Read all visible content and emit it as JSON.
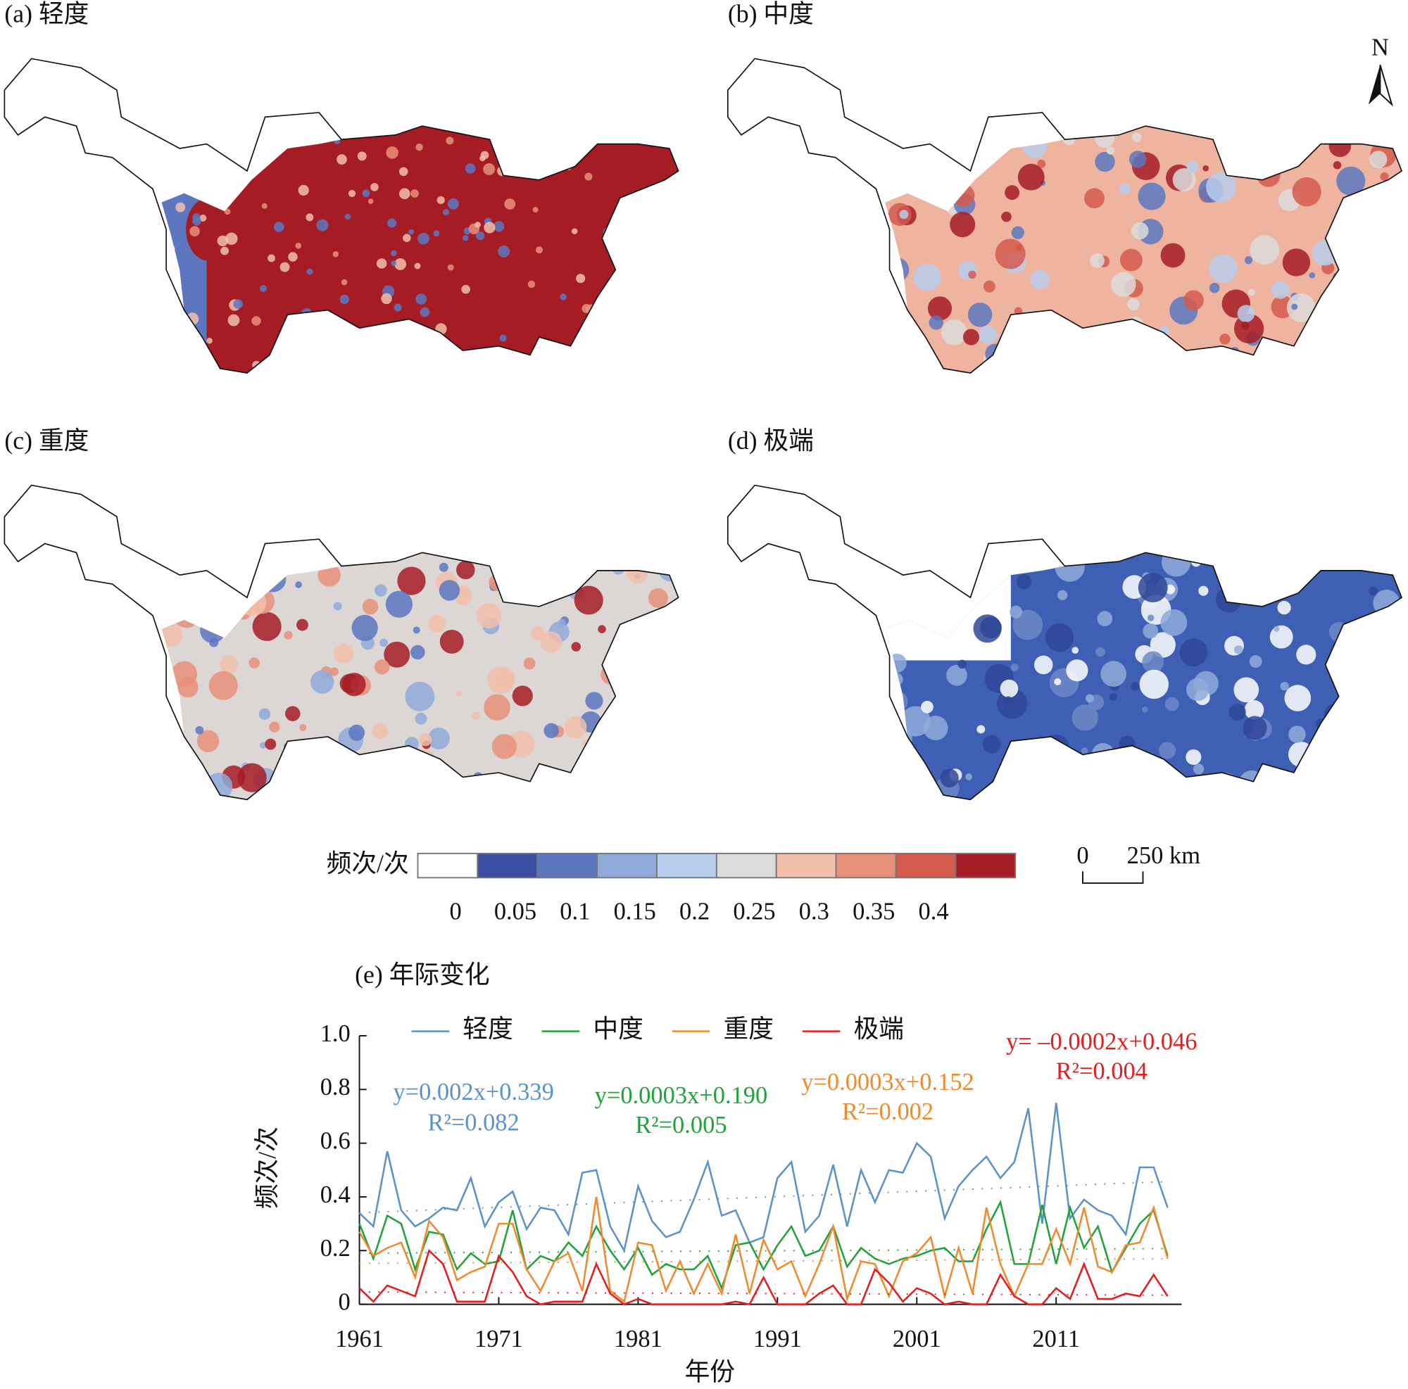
{
  "panels": [
    {
      "label": "(a) 轻度"
    },
    {
      "label": "(b) 中度"
    },
    {
      "label": "(c) 重度"
    },
    {
      "label": "(d) 极端"
    }
  ],
  "north": "N",
  "scale_bar": {
    "labels": [
      "0",
      "250 km"
    ]
  },
  "colorbar": {
    "title": "频次/次",
    "colors": [
      "#ffffff",
      "#3a4fa3",
      "#5c77c0",
      "#8faad9",
      "#b9cdec",
      "#dcdcdc",
      "#f1bfaa",
      "#e8917a",
      "#d35a4c",
      "#a51c25"
    ],
    "ticks": [
      0,
      0.05,
      0.1,
      0.15,
      0.2,
      0.25,
      0.3,
      0.35,
      0.4
    ]
  },
  "chart_data": {
    "type": "line",
    "title": "(e) 年际变化",
    "x_label": "年份",
    "y_label": "频次/次",
    "x": [
      1961,
      1962,
      1963,
      1964,
      1965,
      1966,
      1967,
      1968,
      1969,
      1970,
      1971,
      1972,
      1973,
      1974,
      1975,
      1976,
      1977,
      1978,
      1979,
      1980,
      1981,
      1982,
      1983,
      1984,
      1985,
      1986,
      1987,
      1988,
      1989,
      1990,
      1991,
      1992,
      1993,
      1994,
      1995,
      1996,
      1997,
      1998,
      1999,
      2000,
      2001,
      2002,
      2003,
      2004,
      2005,
      2006,
      2007,
      2008,
      2009,
      2010,
      2011,
      2012,
      2013,
      2014,
      2015,
      2016,
      2017,
      2018,
      2019
    ],
    "xlim": [
      1961,
      2020
    ],
    "xticks": [
      1961,
      1971,
      1981,
      1991,
      2001,
      2011
    ],
    "ylim": [
      0,
      1
    ],
    "yticks": [
      0,
      0.2,
      0.4,
      0.6,
      0.8,
      {
        "value": 1,
        "label": "1.0"
      }
    ],
    "series": [
      {
        "name": "轻度",
        "color": "#5b93c8",
        "values": [
          0.34,
          0.29,
          0.57,
          0.35,
          0.29,
          0.32,
          0.36,
          0.35,
          0.47,
          0.29,
          0.38,
          0.42,
          0.28,
          0.36,
          0.35,
          0.26,
          0.49,
          0.5,
          0.29,
          0.2,
          0.44,
          0.31,
          0.25,
          0.27,
          0.39,
          0.53,
          0.33,
          0.35,
          0.23,
          0.25,
          0.47,
          0.53,
          0.27,
          0.33,
          0.52,
          0.29,
          0.5,
          0.38,
          0.5,
          0.49,
          0.6,
          0.55,
          0.32,
          0.44,
          0.5,
          0.55,
          0.47,
          0.53,
          0.73,
          0.3,
          0.75,
          0.32,
          0.39,
          0.35,
          0.33,
          0.26,
          0.51,
          0.51,
          0.36
        ],
        "trend": {
          "slope": 0.002,
          "intercept": 0.339,
          "equation": "y=0.002x+0.339",
          "r2": "R²=0.082"
        }
      },
      {
        "name": "中度",
        "color": "#1fa33a",
        "values": [
          0.3,
          0.17,
          0.33,
          0.3,
          0.13,
          0.27,
          0.26,
          0.13,
          0.19,
          0.15,
          0.16,
          0.35,
          0.13,
          0.18,
          0.16,
          0.23,
          0.18,
          0.29,
          0.2,
          0.13,
          0.21,
          0.11,
          0.15,
          0.13,
          0.13,
          0.18,
          0.06,
          0.22,
          0.23,
          0.13,
          0.22,
          0.29,
          0.18,
          0.2,
          0.29,
          0.14,
          0.21,
          0.17,
          0.15,
          0.17,
          0.18,
          0.2,
          0.21,
          0.16,
          0.16,
          0.28,
          0.38,
          0.15,
          0.15,
          0.37,
          0.15,
          0.36,
          0.21,
          0.29,
          0.12,
          0.21,
          0.3,
          0.35,
          0.18
        ],
        "trend": {
          "slope": 0.0003,
          "intercept": 0.19,
          "equation": "y=0.0003x+0.190",
          "r2": "R²=0.005"
        }
      },
      {
        "name": "重度",
        "color": "#ef8a2e",
        "values": [
          0.27,
          0.18,
          0.21,
          0.23,
          0.1,
          0.31,
          0.25,
          0.09,
          0.12,
          0.14,
          0.3,
          0.3,
          0.13,
          0.05,
          0.16,
          0.19,
          0.05,
          0.4,
          0.05,
          0.01,
          0.23,
          0.22,
          0.05,
          0.16,
          0.04,
          0.15,
          0.04,
          0.26,
          0.04,
          0.24,
          0.13,
          0.16,
          0.03,
          0.15,
          0.29,
          0.02,
          0.16,
          0.15,
          0.03,
          0.16,
          0.19,
          0.25,
          0.03,
          0.21,
          0.04,
          0.36,
          0.15,
          0.03,
          0.15,
          0.15,
          0.28,
          0.15,
          0.36,
          0.14,
          0.12,
          0.22,
          0.23,
          0.36,
          0.17
        ],
        "trend": {
          "slope": 0.0003,
          "intercept": 0.152,
          "equation": "y=0.0003x+0.152",
          "r2": "R²=0.002"
        }
      },
      {
        "name": "极端",
        "color": "#e41e1e",
        "values": [
          0.06,
          0.01,
          0.07,
          0.05,
          0.03,
          0.2,
          0.15,
          0.01,
          0.01,
          0.01,
          0.18,
          0.12,
          0.03,
          0.0,
          0.01,
          0.01,
          0.01,
          0.15,
          0.04,
          0.0,
          0.02,
          0.0,
          0.0,
          0.0,
          0.0,
          0.0,
          0.0,
          0.01,
          0.0,
          0.1,
          0.0,
          0.0,
          0.0,
          0.04,
          0.07,
          0.0,
          0.0,
          0.13,
          0.08,
          0.01,
          0.06,
          0.04,
          0.0,
          0.01,
          0.0,
          0.0,
          0.11,
          0.03,
          0.0,
          0.0,
          0.06,
          0.02,
          0.15,
          0.02,
          0.02,
          0.04,
          0.03,
          0.11,
          0.03
        ],
        "trend": {
          "slope": -0.0002,
          "intercept": 0.046,
          "equation": "y= –0.0002x+0.046",
          "r2": "R²=0.004"
        }
      }
    ]
  }
}
